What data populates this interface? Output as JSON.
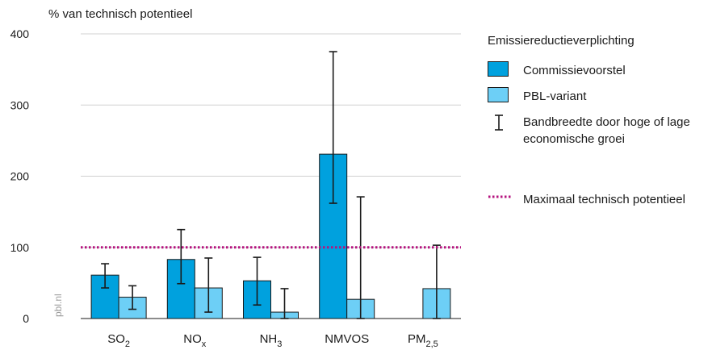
{
  "chart_data": {
    "type": "bar",
    "ylabel": "% van technisch potentieel",
    "ylim": [
      0,
      400
    ],
    "yticks": [
      0,
      100,
      200,
      300,
      400
    ],
    "grid": true,
    "categories": [
      {
        "base": "SO",
        "sub": "2"
      },
      {
        "base": "NO",
        "sub": "x"
      },
      {
        "base": "NH",
        "sub": "3"
      },
      {
        "base": "NMVOS",
        "sub": ""
      },
      {
        "base": "PM",
        "sub": "2,5"
      }
    ],
    "legend_title": "Emissiereductieverplichting",
    "legend_placement": "right",
    "series": [
      {
        "name": "Commissievoorstel",
        "color": "#00a1de",
        "values": [
          61,
          83,
          53,
          231,
          0
        ],
        "err_low": [
          43,
          49,
          19,
          162,
          0
        ],
        "err_high": [
          77,
          125,
          86,
          375,
          0
        ]
      },
      {
        "name": "PBL-variant",
        "color": "#6dcff6",
        "values": [
          30,
          43,
          9,
          27,
          42
        ],
        "err_low": [
          13,
          9,
          0,
          0,
          0
        ],
        "err_high": [
          46,
          85,
          42,
          171,
          103
        ]
      }
    ],
    "error_bar_label": "Bandbreedte door hoge of lage economische groei",
    "reference_line": {
      "value": 100,
      "label": "Maximaal technisch potentieel",
      "color": "#b5147f"
    }
  },
  "watermark": "pbl.nl"
}
